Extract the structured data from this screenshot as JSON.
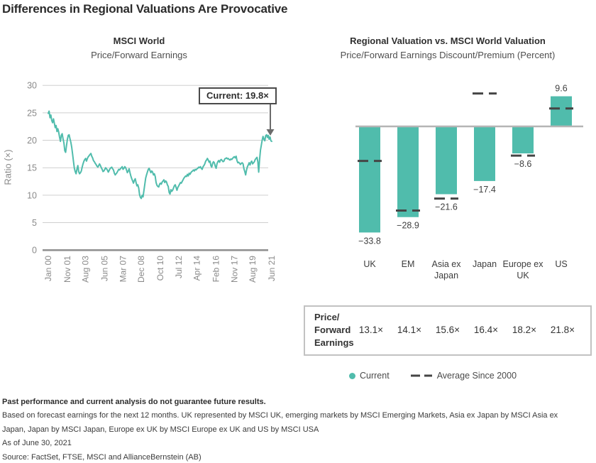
{
  "title": "Differences in Regional Valuations Are Provocative",
  "colors": {
    "teal": "#50BCAC",
    "dark_text": "#2b2b2b",
    "subtitle_gray": "#4e4e4e",
    "axis_text": "#8a8a8a",
    "gridline": "#cfcfcf",
    "axis_line": "#8f8f8f",
    "zero_line": "#b5b5b5",
    "dash": "#454545",
    "arrow": "#6b6b6b",
    "callout_border": "#4a4a4a",
    "table_border": "#c2c2c2"
  },
  "chart_data": [
    {
      "type": "line",
      "title": "MSCI World",
      "subtitle": "Price/Forward Earnings",
      "ylabel": "Ratio (×)",
      "ylim": [
        0,
        30
      ],
      "y_ticks": [
        30,
        25,
        20,
        15,
        10,
        5,
        0
      ],
      "grid": "horizontal",
      "x_tick_labels": [
        "Jan 00",
        "Nov 01",
        "Aug 03",
        "Jun 05",
        "Mar 07",
        "Dec 08",
        "Oct 10",
        "Jul 12",
        "Apr 14",
        "Feb 16",
        "Nov 17",
        "Aug 19",
        "Jun 21"
      ],
      "x_tick_indices": [
        0,
        22,
        43,
        65,
        86,
        107,
        129,
        150,
        171,
        193,
        214,
        235,
        257
      ],
      "annotation": {
        "label": "Current: 19.8×",
        "value": 19.8
      },
      "series": [
        {
          "name": "MSCI World Price/Forward Earnings",
          "frequency": "monthly",
          "start": "Jan 2000",
          "end": "Jun 2021",
          "values": [
            24.9,
            25.3,
            24.1,
            24.6,
            23.6,
            23.2,
            23.9,
            23.1,
            22.3,
            22.7,
            21.6,
            22.1,
            21.5,
            20.6,
            19.8,
            20.9,
            21.2,
            20.3,
            19.5,
            18.1,
            17.8,
            19.0,
            20.2,
            20.9,
            21.0,
            20.3,
            19.6,
            18.7,
            17.5,
            16.2,
            14.9,
            14.3,
            13.9,
            14.7,
            15.4,
            14.3,
            13.9,
            14.1,
            14.4,
            15.1,
            15.7,
            16.2,
            16.5,
            16.7,
            16.2,
            16.7,
            17.0,
            17.2,
            17.4,
            17.6,
            17.1,
            16.8,
            16.3,
            16.1,
            15.8,
            15.6,
            15.3,
            15.1,
            15.4,
            15.7,
            15.4,
            15.0,
            14.7,
            14.3,
            14.4,
            14.7,
            15.0,
            14.8,
            14.6,
            14.2,
            14.5,
            14.8,
            15.0,
            15.1,
            14.8,
            14.6,
            14.0,
            13.7,
            13.9,
            14.1,
            14.4,
            14.7,
            14.6,
            14.8,
            15.0,
            15.2,
            14.7,
            14.9,
            15.2,
            15.0,
            14.6,
            14.1,
            14.4,
            14.8,
            14.1,
            13.5,
            13.0,
            12.6,
            12.2,
            12.7,
            13.0,
            12.3,
            11.7,
            11.9,
            11.3,
            10.1,
            9.6,
            9.4,
            10.0,
            9.7,
            10.8,
            12.0,
            13.1,
            13.7,
            14.2,
            14.7,
            14.9,
            14.5,
            14.1,
            14.4,
            14.2,
            13.7,
            13.9,
            13.4,
            12.3,
            11.8,
            11.6,
            11.5,
            12.0,
            12.2,
            12.0,
            12.4,
            12.6,
            12.8,
            12.3,
            12.6,
            12.4,
            11.9,
            11.6,
            10.5,
            10.2,
            11.0,
            10.7,
            10.9,
            11.3,
            11.7,
            11.9,
            11.4,
            10.9,
            11.4,
            11.7,
            12.0,
            12.3,
            12.2,
            12.5,
            12.8,
            13.1,
            13.3,
            13.5,
            13.4,
            13.8,
            13.5,
            14.0,
            13.8,
            14.1,
            14.3,
            14.4,
            14.6,
            14.4,
            14.7,
            14.6,
            14.8,
            14.9,
            15.1,
            15.0,
            15.2,
            14.9,
            14.7,
            15.2,
            15.4,
            15.7,
            16.2,
            16.4,
            16.7,
            16.4,
            16.0,
            16.2,
            15.4,
            15.1,
            15.8,
            16.1,
            15.9,
            15.3,
            14.9,
            15.7,
            16.1,
            16.3,
            16.0,
            16.4,
            16.5,
            16.3,
            16.1,
            16.2,
            16.6,
            16.7,
            16.8,
            16.6,
            16.7,
            16.5,
            16.4,
            16.6,
            16.5,
            16.7,
            16.9,
            17.0,
            16.8,
            17.1,
            16.3,
            15.9,
            16.0,
            15.8,
            15.6,
            15.8,
            15.9,
            15.7,
            14.8,
            14.3,
            13.7,
            14.6,
            15.2,
            15.5,
            15.9,
            15.5,
            16.0,
            16.2,
            15.7,
            15.9,
            16.1,
            16.5,
            16.7,
            16.9,
            16.1,
            14.2,
            16.4,
            18.2,
            19.1,
            20.0,
            20.7,
            20.2,
            19.9,
            20.8,
            21.0,
            20.5,
            20.9,
            20.2,
            20.6,
            19.9,
            19.8
          ]
        }
      ]
    },
    {
      "type": "bar",
      "title": "Regional Valuation vs. MSCI World Valuation",
      "subtitle": "Price/Forward Earnings Discount/Premium (Percent)",
      "categories": [
        "UK",
        "EM",
        "Asia ex Japan",
        "Japan",
        "Europe ex UK",
        "US"
      ],
      "ylim": [
        -40,
        15
      ],
      "series": [
        {
          "name": "Current",
          "values": [
            -33.8,
            -28.9,
            -21.6,
            -17.4,
            -8.6,
            9.6
          ]
        },
        {
          "name": "Average Since 2000",
          "style": "dash",
          "values": [
            -11.0,
            -26.8,
            -23.0,
            10.5,
            -9.3,
            5.7
          ]
        }
      ],
      "bar_labels": [
        "−33.8",
        "−28.9",
        "−21.6",
        "−17.4",
        "−8.6",
        "9.6"
      ]
    }
  ],
  "table": {
    "row_label_lines": [
      "Price/",
      "Forward",
      "Earnings"
    ],
    "values": [
      "13.1×",
      "14.1×",
      "15.6×",
      "16.4×",
      "18.2×",
      "21.8×"
    ]
  },
  "legend": {
    "current": "Current",
    "average": "Average Since 2000"
  },
  "footnotes": [
    "Past performance and current analysis do not guarantee future results.",
    "Based on forecast earnings for the next 12 months. UK represented by MSCI UK, emerging markets by MSCI Emerging Markets, Asia ex Japan by MSCI Asia ex",
    "Japan, Japan by MSCI Japan, Europe ex UK by MSCI Europe ex UK and US by MSCI USA",
    "As of June 30, 2021",
    "Source: FactSet, FTSE, MSCI and AllianceBernstein (AB)"
  ]
}
